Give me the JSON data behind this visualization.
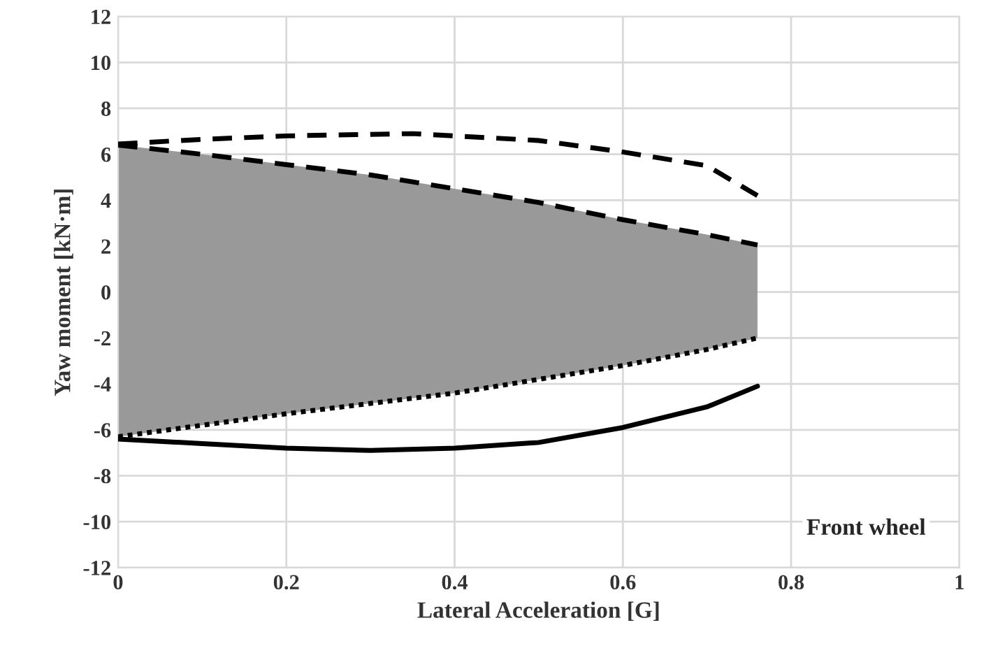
{
  "chart_data": {
    "type": "line",
    "xlabel": "Lateral Acceleration [G]",
    "ylabel": "Yaw moment [kN·m]",
    "xlim": [
      0,
      1
    ],
    "xticks": [
      0,
      0.2,
      0.4,
      0.6,
      0.8,
      1
    ],
    "ylim": [
      -12,
      12
    ],
    "yticks": [
      -12,
      -10,
      -8,
      -6,
      -4,
      -2,
      0,
      2,
      4,
      6,
      8,
      10,
      12
    ],
    "grid": true,
    "legend": false,
    "marker": "none",
    "series": [
      {
        "color": "#000000",
        "line_style": "dashed",
        "x": [
          0,
          0.1,
          0.2,
          0.35,
          0.5,
          0.6,
          0.7,
          0.76
        ],
        "values": [
          6.45,
          6.65,
          6.8,
          6.9,
          6.6,
          6.1,
          5.5,
          4.2
        ]
      },
      {
        "color": "#000000",
        "line_style": "dashed",
        "x": [
          0,
          0.1,
          0.2,
          0.3,
          0.4,
          0.5,
          0.6,
          0.7,
          0.76
        ],
        "values": [
          6.4,
          6.0,
          5.55,
          5.1,
          4.5,
          3.9,
          3.15,
          2.5,
          2.05
        ],
        "lower": [
          -6.3,
          -5.8,
          -5.3,
          -4.85,
          -4.4,
          -3.8,
          -3.2,
          -2.5,
          -2.0
        ],
        "upper": [
          6.4,
          6.0,
          5.55,
          5.1,
          4.5,
          3.9,
          3.15,
          2.5,
          2.05
        ]
      },
      {
        "color": "#000000",
        "line_style": "dotted",
        "x": [
          0,
          0.1,
          0.2,
          0.3,
          0.4,
          0.5,
          0.6,
          0.7,
          0.76
        ],
        "values": [
          -6.3,
          -5.8,
          -5.3,
          -4.85,
          -4.4,
          -3.8,
          -3.2,
          -2.5,
          -2.0
        ]
      },
      {
        "color": "#000000",
        "line_style": "solid",
        "x": [
          0,
          0.1,
          0.2,
          0.3,
          0.4,
          0.5,
          0.6,
          0.7,
          0.76
        ],
        "values": [
          -6.4,
          -6.6,
          -6.8,
          -6.9,
          -6.8,
          -6.55,
          -5.9,
          -5.0,
          -4.1
        ]
      }
    ],
    "annotations": [
      "Front wheel"
    ]
  }
}
